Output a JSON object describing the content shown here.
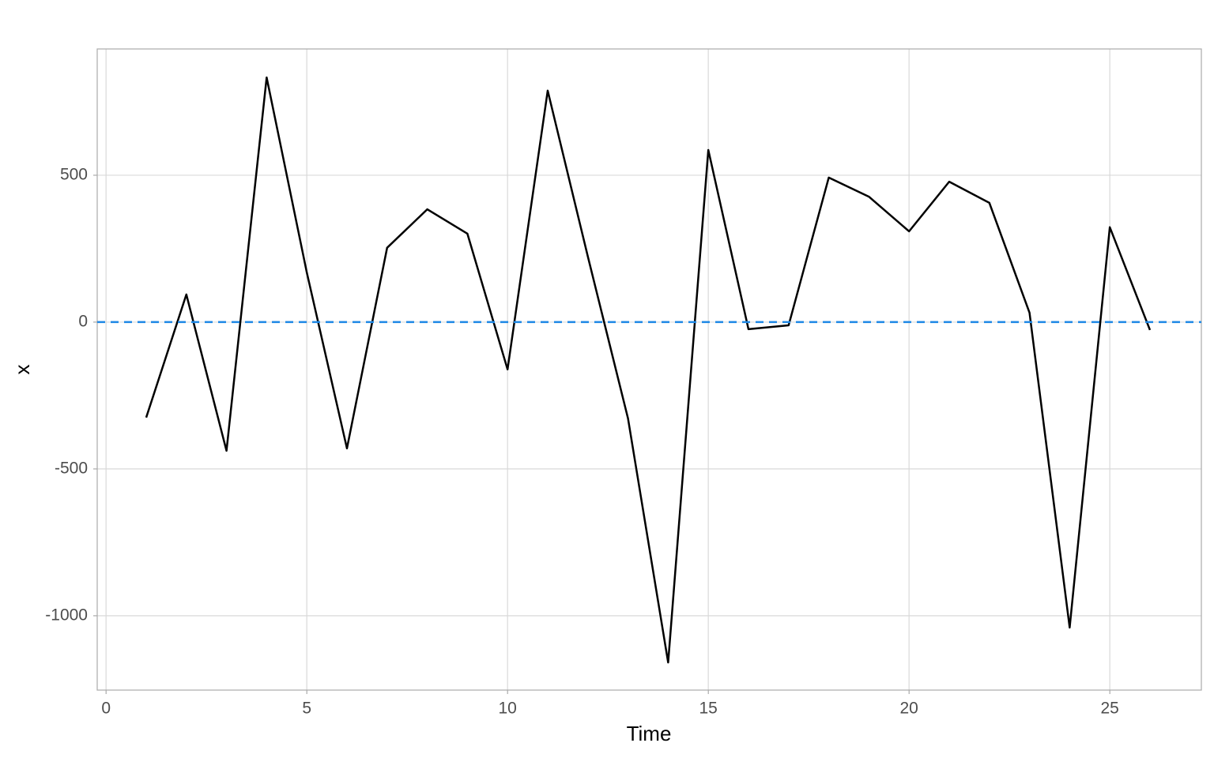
{
  "chart_data": {
    "type": "line",
    "x_label": "Time",
    "y_label": "x",
    "x": [
      1,
      2,
      3,
      4,
      5,
      6,
      7,
      8,
      9,
      10,
      11,
      12,
      13,
      14,
      15,
      16,
      17,
      18,
      19,
      20,
      21,
      22,
      23,
      24,
      25,
      26
    ],
    "series": [
      {
        "color": "#000000",
        "values": [
          -325,
          94,
          -438,
          833,
          169,
          -430,
          253,
          384,
          301,
          -161,
          788,
          223,
          -328,
          -1159,
          586,
          -24,
          -11,
          492,
          427,
          309,
          478,
          406,
          32,
          -1040,
          323,
          -27
        ]
      }
    ],
    "xlim": [
      -0.22,
      27.28
    ],
    "xticks": [
      0,
      5,
      10,
      15,
      20,
      25
    ],
    "ylim": [
      -1253,
      930
    ],
    "yticks": [
      -1000,
      -500,
      0,
      500
    ],
    "hline": {
      "value": 0,
      "color": "#1e88e5"
    },
    "grid": true
  }
}
